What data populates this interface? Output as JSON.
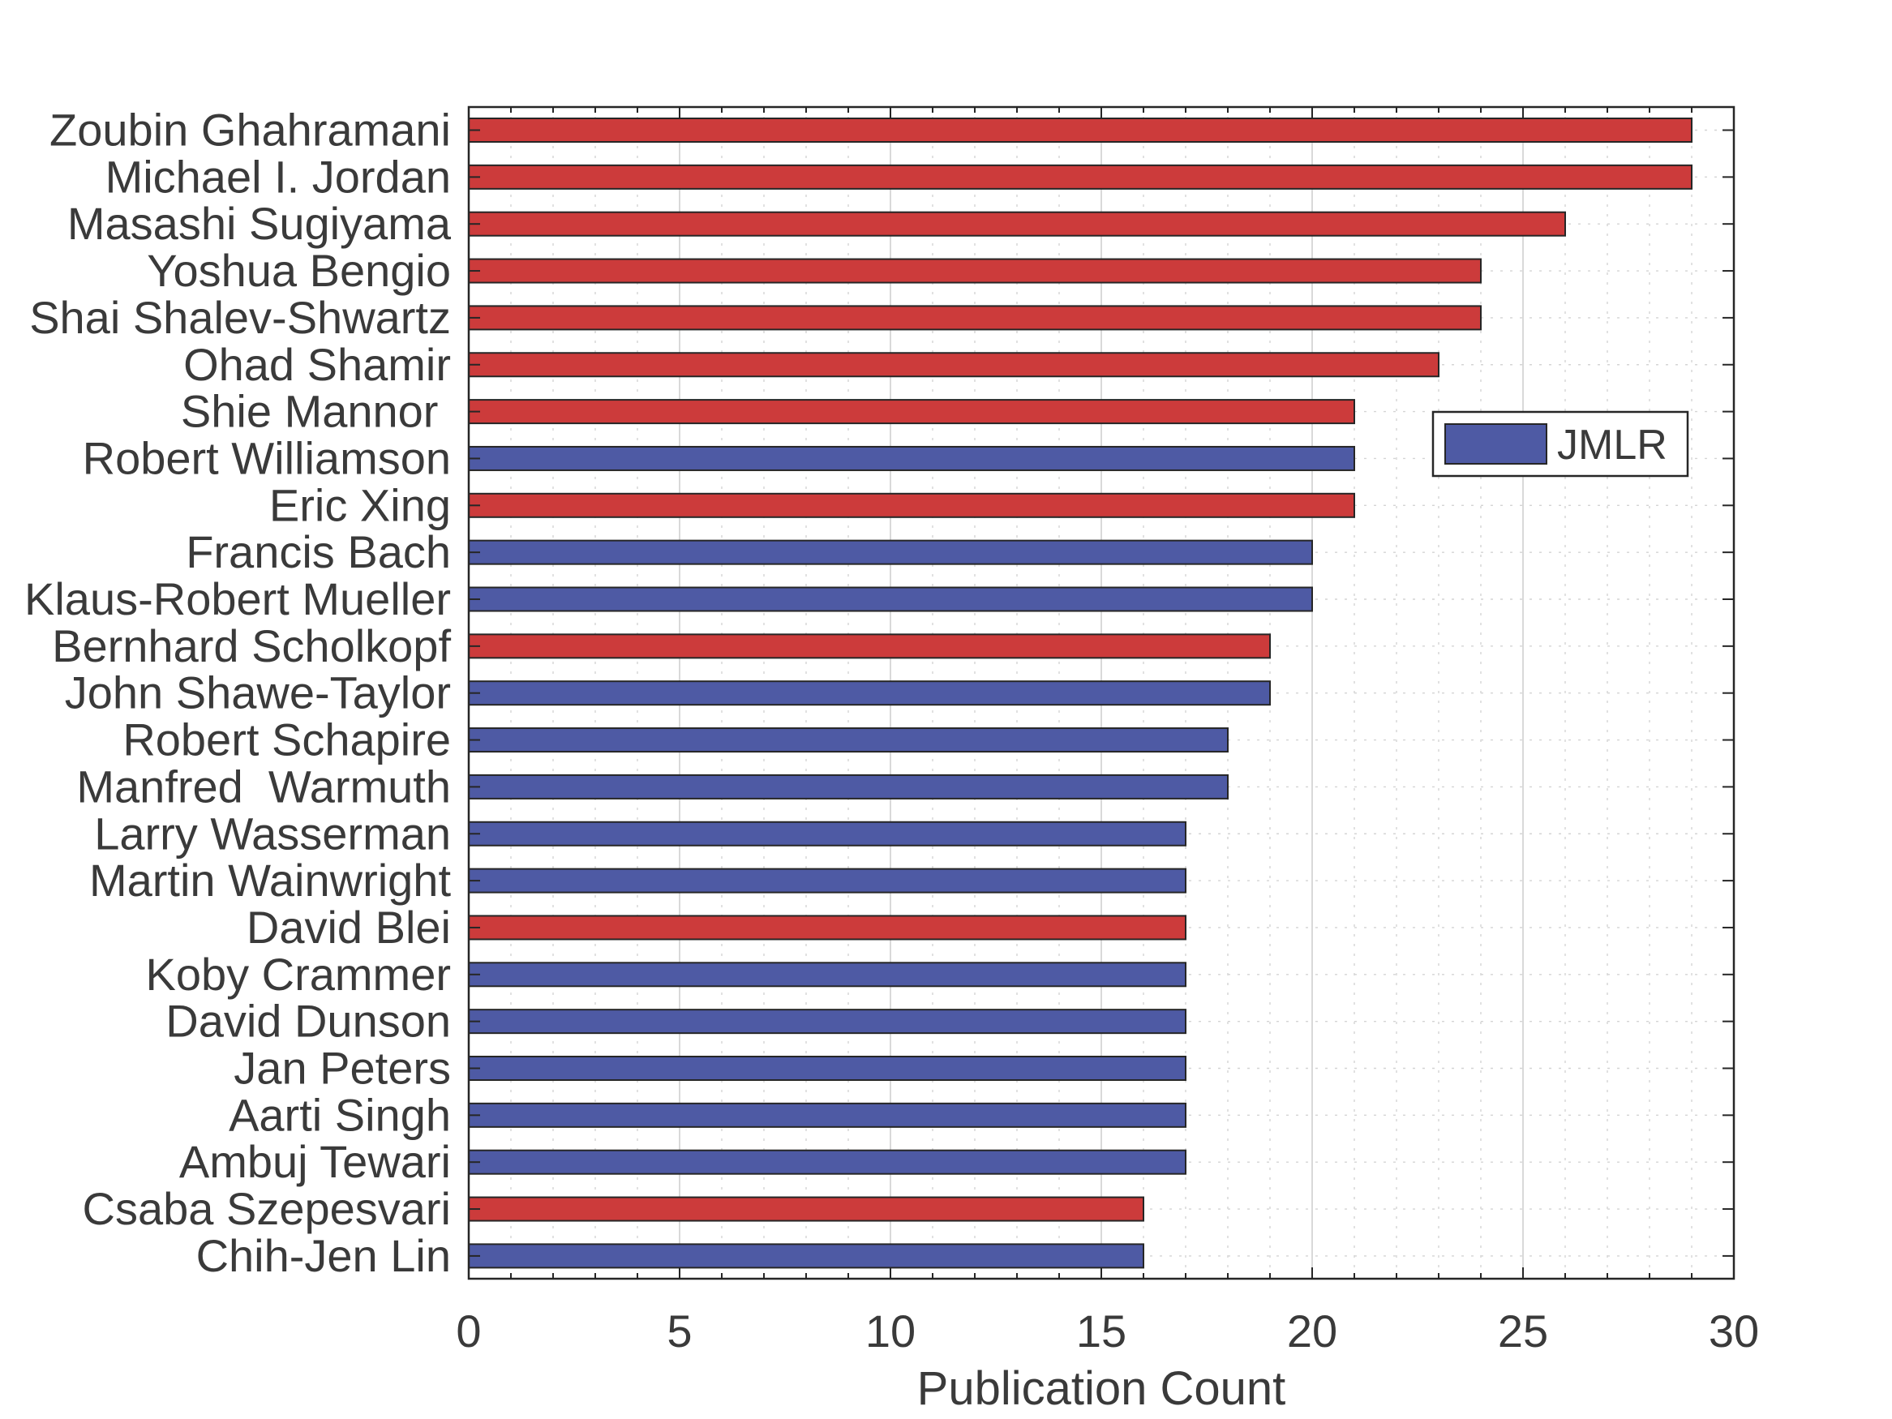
{
  "chart_data": {
    "type": "bar",
    "orientation": "horizontal",
    "title": "",
    "xlabel": "Publication Count",
    "ylabel": "",
    "xlim": [
      0,
      30
    ],
    "xticks": [
      0,
      5,
      10,
      15,
      20,
      25,
      30
    ],
    "grid": true,
    "minor_grid": true,
    "legend": {
      "placement": "right",
      "entries": [
        {
          "label": "JMLR",
          "color": "#4e5aa4"
        }
      ]
    },
    "colors": {
      "red": "#cc3b3b",
      "blue": "#4e5aa4"
    },
    "categories": [
      "Zoubin Ghahramani",
      "Michael I. Jordan",
      "Masashi Sugiyama",
      "Yoshua Bengio",
      "Shai Shalev-Shwartz",
      "Ohad Shamir",
      "Shie Mannor ",
      "Robert Williamson",
      "Eric Xing",
      "Francis Bach",
      "Klaus-Robert Mueller",
      "Bernhard Scholkopf",
      "John Shawe-Taylor",
      "Robert Schapire",
      "Manfred  Warmuth",
      "Larry Wasserman",
      "Martin Wainwright",
      "David Blei",
      "Koby Crammer",
      "David Dunson",
      "Jan Peters",
      "Aarti Singh",
      "Ambuj Tewari",
      "Csaba Szepesvari",
      "Chih-Jen Lin"
    ],
    "values": [
      29,
      29,
      26,
      24,
      24,
      23,
      21,
      21,
      21,
      20,
      20,
      19,
      19,
      18,
      18,
      17,
      17,
      17,
      17,
      17,
      17,
      17,
      17,
      16,
      16
    ],
    "bar_colors": [
      "red",
      "red",
      "red",
      "red",
      "red",
      "red",
      "red",
      "blue",
      "red",
      "blue",
      "blue",
      "red",
      "blue",
      "blue",
      "blue",
      "blue",
      "blue",
      "red",
      "blue",
      "blue",
      "blue",
      "blue",
      "blue",
      "red",
      "blue"
    ]
  }
}
